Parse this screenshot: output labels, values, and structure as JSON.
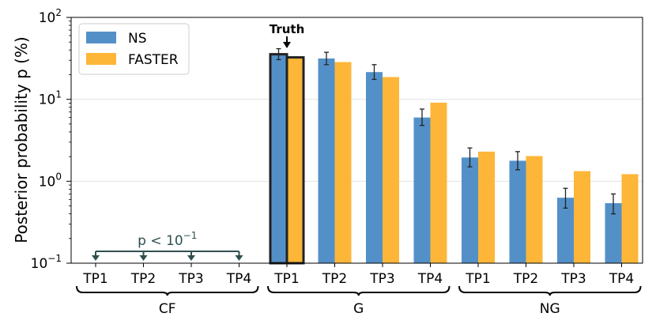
{
  "chart_data": {
    "type": "bar",
    "yscale": "log",
    "ylim": [
      0.1,
      100
    ],
    "ylabel": "Posterior probability p (%)",
    "ytick_labels": [
      {
        "value": 0.1,
        "base": "10",
        "exp": "−1"
      },
      {
        "value": 1,
        "base": "10",
        "exp": "0"
      },
      {
        "value": 10,
        "base": "10",
        "exp": "1"
      },
      {
        "value": 100,
        "base": "10",
        "exp": "2"
      }
    ],
    "categories": [
      "TP1",
      "TP2",
      "TP3",
      "TP4",
      "TP1",
      "TP2",
      "TP3",
      "TP4",
      "TP1",
      "TP2",
      "TP3",
      "TP4"
    ],
    "groups": [
      {
        "label": "CF",
        "from": 0,
        "to": 3
      },
      {
        "label": "G",
        "from": 4,
        "to": 7
      },
      {
        "label": "NG",
        "from": 8,
        "to": 11
      }
    ],
    "series": [
      {
        "name": "NS",
        "color": "#5490c8",
        "values": [
          null,
          null,
          null,
          null,
          35.5,
          31.5,
          21.5,
          6.0,
          1.95,
          1.78,
          0.63,
          0.54
        ],
        "err_low": [
          null,
          null,
          null,
          null,
          30.5,
          26.5,
          17.5,
          4.8,
          1.5,
          1.38,
          0.47,
          0.4
        ],
        "err_high": [
          null,
          null,
          null,
          null,
          41.5,
          37.5,
          26.5,
          7.6,
          2.55,
          2.3,
          0.82,
          0.7
        ]
      },
      {
        "name": "FASTER",
        "color": "#fdb638",
        "values": [
          null,
          null,
          null,
          null,
          32.5,
          28.5,
          18.7,
          9.1,
          2.3,
          2.03,
          1.33,
          1.22
        ]
      }
    ],
    "truth_label": "Truth",
    "truth_index": 4,
    "upper_limit_text": "p < 10",
    "upper_limit_exp": "−1",
    "upper_limit_indices": [
      0,
      1,
      2,
      3
    ],
    "grid": "y-major",
    "legend": "top-left"
  }
}
